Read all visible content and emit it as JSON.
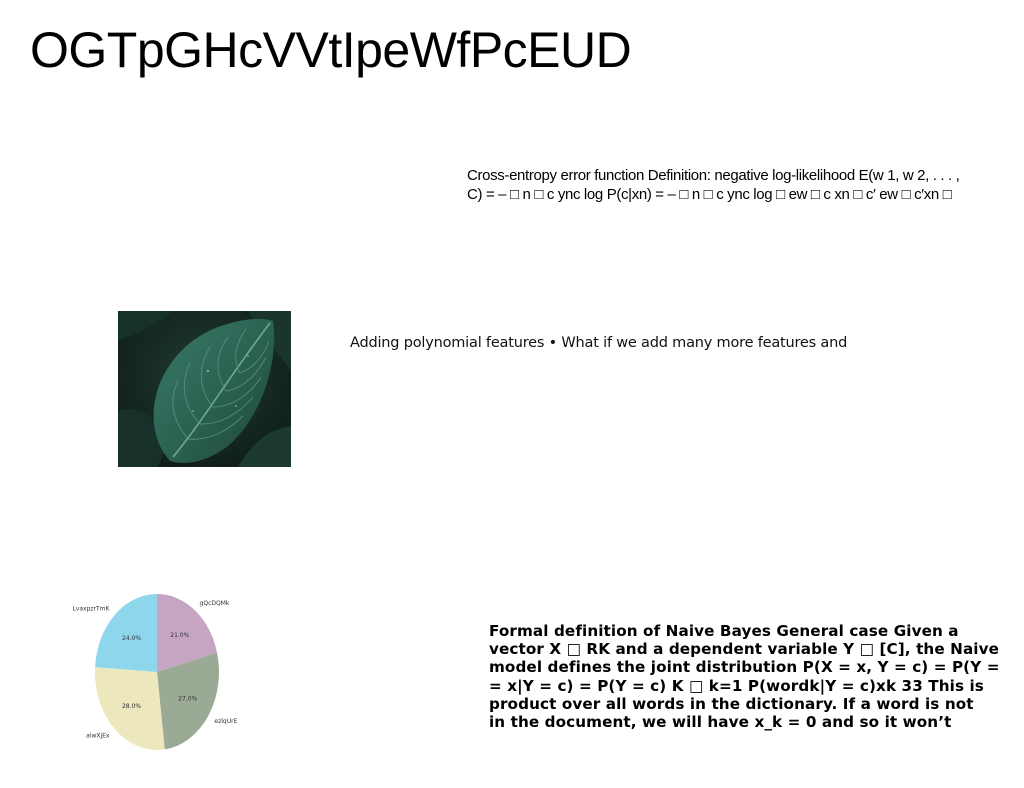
{
  "slide": {
    "title": "OGTpGHcVVtIpeWfPcEUD"
  },
  "cross_entropy": {
    "lines": [
      "Cross-entropy error function Definition: negative log-likelihood E(w 1, w 2, . . . ,",
      "C) = – □ n □ c ync log P(c|xn) = – □ n □ c ync log □ ew □ c xn □ c′ ew □ c′xn □"
    ]
  },
  "polynomial": {
    "text": "Adding polynomial features • What if we add many more features and"
  },
  "photo": {
    "subject": "green hosta leaf"
  },
  "naive_bayes": {
    "lines": [
      "Formal definition of Naive Bayes General case Given a",
      "vector X □ RK and a dependent variable Y □ [C], the Naive",
      "model defines the joint distribution P(X = x, Y = c) = P(Y =",
      "= x|Y = c) = P(Y = c) K □ k=1 P(wordk|Y = c)xk 33 This is",
      "product over all words in the dictionary. If a word is not",
      "in the document, we will have x_k = 0 and so it won’t"
    ]
  },
  "chart_data": {
    "type": "pie",
    "title": "",
    "start_angle": 90,
    "direction": "clockwise",
    "slices": [
      {
        "label": "gQcDQMk",
        "value": 21.0,
        "display": "21.0%",
        "color": "#c5a5c3"
      },
      {
        "label": "ezlqUrE",
        "value": 27.0,
        "display": "27.0%",
        "color": "#9aaa95"
      },
      {
        "label": "alwXjEx",
        "value": 28.0,
        "display": "28.0%",
        "color": "#ede7bd"
      },
      {
        "label": "LvaxpzrTmK",
        "value": 24.0,
        "display": "24.0%",
        "color": "#8dd6ec"
      }
    ]
  }
}
